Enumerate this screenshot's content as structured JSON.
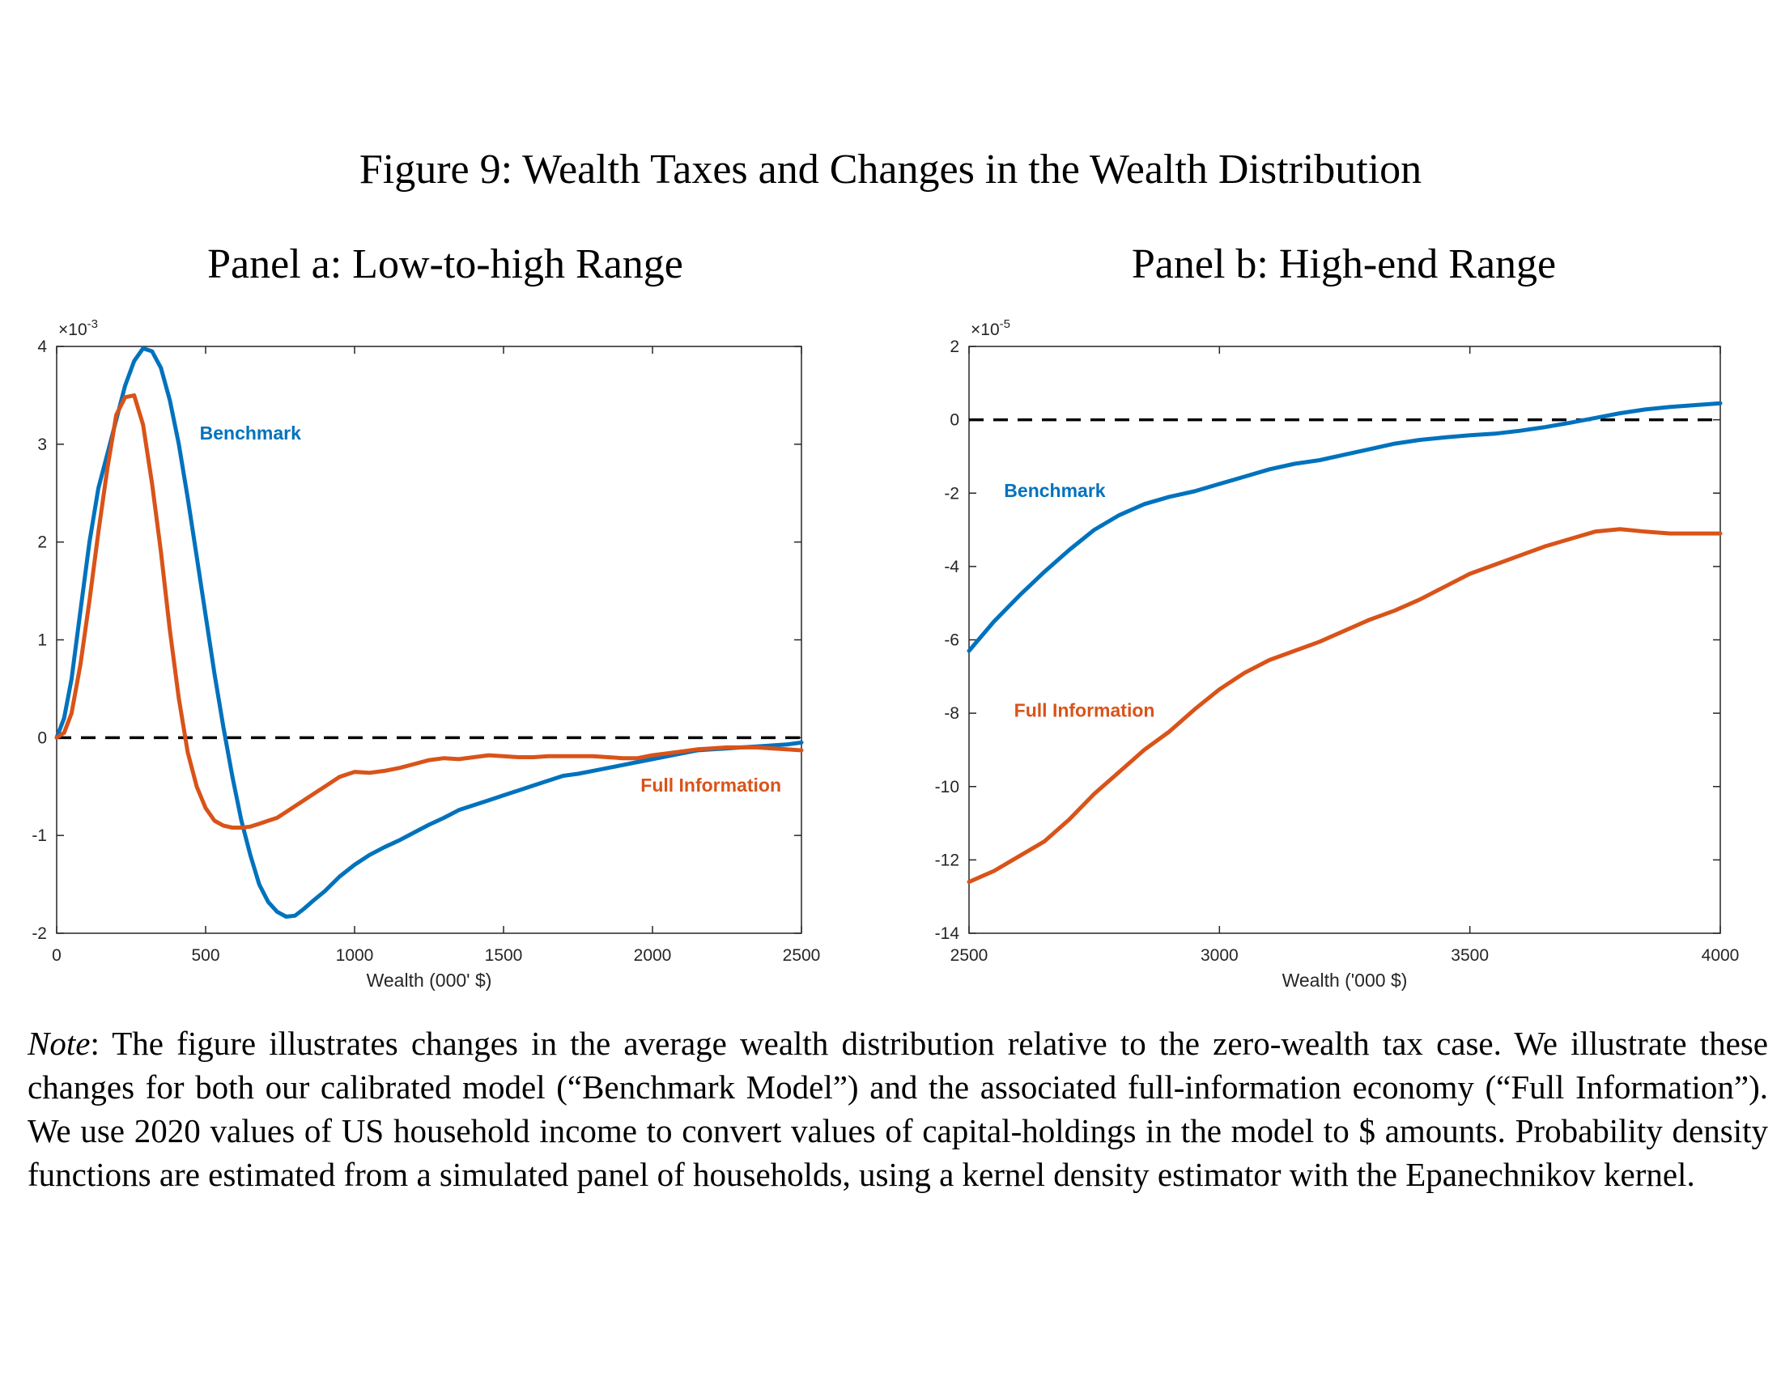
{
  "figure_title": "Figure 9: Wealth Taxes and Changes in the Wealth Distribution",
  "note": {
    "label": "Note",
    "text": ": The figure illustrates changes in the average wealth distribution relative to the zero-wealth tax case. We illustrate these changes for both our calibrated model (“Benchmark Model”) and the associated full-information economy (“Full Information”). We use 2020 values of US household income to convert values of capital-holdings in the model to $ amounts. Probability density functions are estimated from a simulated panel of households, using a kernel density estimator with the Epanechnikov kernel."
  },
  "colors": {
    "benchmark": "#0072BD",
    "full_information": "#D95319",
    "reference": "#000000"
  },
  "chart_data": [
    {
      "type": "line",
      "title": "Panel a: Low-to-high Range",
      "xlabel": "Wealth (000' $)",
      "ylabel": "",
      "y_multiplier": "×10",
      "y_exponent": "-3",
      "xlim": [
        0,
        2500
      ],
      "ylim": [
        -2,
        4
      ],
      "xticks": [
        0,
        500,
        1000,
        1500,
        2000,
        2500
      ],
      "yticks": [
        -2,
        -1,
        0,
        1,
        2,
        3,
        4
      ],
      "grid": false,
      "reference_line": 0,
      "series": [
        {
          "name": "Benchmark",
          "label_at": [
            480,
            3.05
          ],
          "x": [
            0,
            25,
            50,
            80,
            110,
            140,
            170,
            200,
            230,
            260,
            290,
            320,
            350,
            380,
            410,
            440,
            470,
            500,
            530,
            560,
            590,
            620,
            650,
            680,
            710,
            740,
            770,
            800,
            830,
            860,
            900,
            950,
            1000,
            1050,
            1100,
            1150,
            1200,
            1250,
            1300,
            1350,
            1400,
            1450,
            1500,
            1550,
            1600,
            1650,
            1700,
            1750,
            1800,
            1850,
            1900,
            1950,
            2000,
            2050,
            2100,
            2150,
            2200,
            2250,
            2300,
            2350,
            2400,
            2450,
            2500
          ],
          "y": [
            0,
            0.2,
            0.6,
            1.3,
            2.0,
            2.55,
            2.9,
            3.25,
            3.6,
            3.85,
            3.98,
            3.95,
            3.78,
            3.45,
            3.0,
            2.45,
            1.85,
            1.25,
            0.65,
            0.1,
            -0.4,
            -0.85,
            -1.2,
            -1.5,
            -1.68,
            -1.78,
            -1.83,
            -1.82,
            -1.75,
            -1.67,
            -1.57,
            -1.42,
            -1.3,
            -1.2,
            -1.12,
            -1.05,
            -0.97,
            -0.89,
            -0.82,
            -0.74,
            -0.69,
            -0.64,
            -0.59,
            -0.54,
            -0.49,
            -0.44,
            -0.39,
            -0.37,
            -0.34,
            -0.31,
            -0.28,
            -0.25,
            -0.22,
            -0.19,
            -0.16,
            -0.13,
            -0.12,
            -0.11,
            -0.1,
            -0.09,
            -0.08,
            -0.07,
            -0.05
          ]
        },
        {
          "name": "Full Information",
          "label_at": [
            1960,
            -0.55
          ],
          "x": [
            0,
            25,
            50,
            80,
            110,
            140,
            170,
            200,
            230,
            260,
            290,
            320,
            350,
            380,
            410,
            440,
            470,
            500,
            530,
            560,
            590,
            620,
            650,
            680,
            710,
            740,
            770,
            800,
            850,
            900,
            950,
            1000,
            1050,
            1100,
            1150,
            1200,
            1250,
            1300,
            1350,
            1400,
            1450,
            1500,
            1550,
            1600,
            1650,
            1700,
            1750,
            1800,
            1850,
            1900,
            1950,
            2000,
            2050,
            2100,
            2150,
            2200,
            2250,
            2300,
            2350,
            2400,
            2450,
            2500
          ],
          "y": [
            0,
            0.05,
            0.25,
            0.75,
            1.4,
            2.1,
            2.75,
            3.3,
            3.48,
            3.5,
            3.2,
            2.6,
            1.9,
            1.1,
            0.4,
            -0.15,
            -0.5,
            -0.72,
            -0.85,
            -0.9,
            -0.92,
            -0.92,
            -0.91,
            -0.88,
            -0.85,
            -0.82,
            -0.76,
            -0.7,
            -0.6,
            -0.5,
            -0.4,
            -0.35,
            -0.36,
            -0.34,
            -0.31,
            -0.27,
            -0.23,
            -0.21,
            -0.22,
            -0.2,
            -0.18,
            -0.19,
            -0.2,
            -0.2,
            -0.19,
            -0.19,
            -0.19,
            -0.19,
            -0.2,
            -0.21,
            -0.21,
            -0.18,
            -0.16,
            -0.14,
            -0.12,
            -0.11,
            -0.1,
            -0.1,
            -0.1,
            -0.11,
            -0.12,
            -0.13
          ]
        }
      ]
    },
    {
      "type": "line",
      "title": "Panel b: High-end Range",
      "xlabel": "Wealth ('000 $)",
      "ylabel": "",
      "y_multiplier": "×10",
      "y_exponent": "-5",
      "xlim": [
        2500,
        4000
      ],
      "ylim": [
        -14,
        2
      ],
      "xticks": [
        2500,
        3000,
        3500,
        4000
      ],
      "yticks": [
        -14,
        -12,
        -10,
        -8,
        -6,
        -4,
        -2,
        0,
        2
      ],
      "grid": false,
      "reference_line": 0,
      "series": [
        {
          "name": "Benchmark",
          "label_at": [
            2570,
            -2.1
          ],
          "x": [
            2500,
            2550,
            2600,
            2650,
            2700,
            2750,
            2800,
            2850,
            2900,
            2950,
            3000,
            3050,
            3100,
            3150,
            3200,
            3250,
            3300,
            3350,
            3400,
            3450,
            3500,
            3550,
            3600,
            3650,
            3700,
            3750,
            3800,
            3850,
            3900,
            3950,
            4000
          ],
          "y": [
            -6.3,
            -5.5,
            -4.8,
            -4.15,
            -3.55,
            -3.0,
            -2.6,
            -2.3,
            -2.1,
            -1.95,
            -1.75,
            -1.55,
            -1.35,
            -1.2,
            -1.1,
            -0.95,
            -0.8,
            -0.65,
            -0.55,
            -0.48,
            -0.42,
            -0.38,
            -0.3,
            -0.2,
            -0.08,
            0.05,
            0.18,
            0.28,
            0.35,
            0.4,
            0.45
          ]
        },
        {
          "name": "Full Information",
          "label_at": [
            2590,
            -8.1
          ],
          "x": [
            2500,
            2550,
            2600,
            2650,
            2700,
            2750,
            2800,
            2850,
            2900,
            2950,
            3000,
            3050,
            3100,
            3150,
            3200,
            3250,
            3300,
            3350,
            3400,
            3450,
            3500,
            3550,
            3600,
            3650,
            3700,
            3750,
            3800,
            3850,
            3900,
            3950,
            4000
          ],
          "y": [
            -12.6,
            -12.3,
            -11.9,
            -11.5,
            -10.9,
            -10.2,
            -9.6,
            -9.0,
            -8.5,
            -7.9,
            -7.35,
            -6.9,
            -6.55,
            -6.3,
            -6.05,
            -5.75,
            -5.45,
            -5.2,
            -4.9,
            -4.55,
            -4.2,
            -3.95,
            -3.7,
            -3.45,
            -3.25,
            -3.05,
            -2.98,
            -3.05,
            -3.1,
            -3.1,
            -3.1
          ]
        }
      ]
    }
  ]
}
